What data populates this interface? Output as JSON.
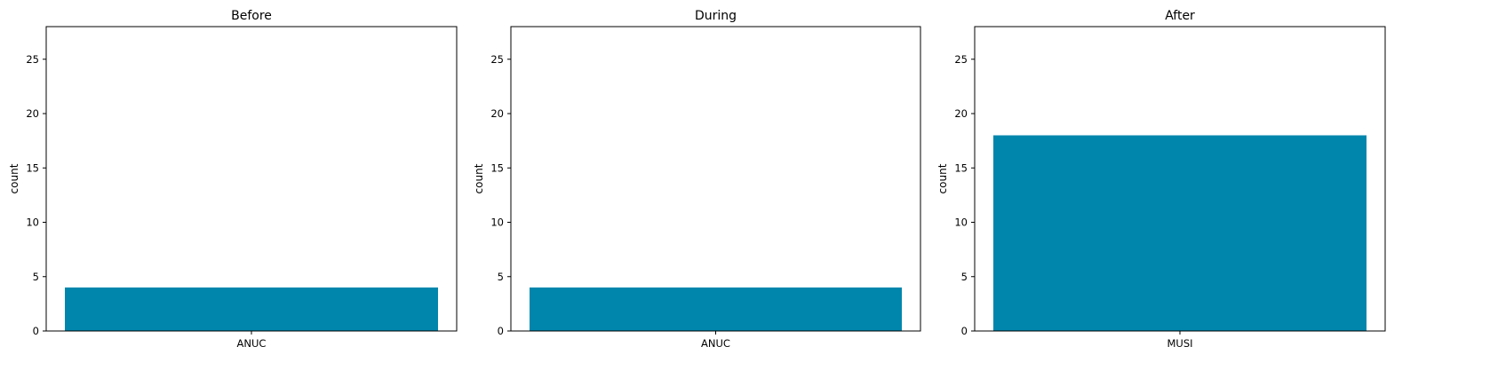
{
  "chart_data": [
    {
      "type": "bar",
      "title": "Before",
      "xlabel": "",
      "ylabel": "count",
      "categories": [
        "ANUC"
      ],
      "values": [
        4
      ],
      "ylim": [
        0,
        28
      ],
      "yticks": [
        0,
        5,
        10,
        15,
        20,
        25
      ],
      "bar_color": "#0086ad",
      "grid": false,
      "legend": "none"
    },
    {
      "type": "bar",
      "title": "During",
      "xlabel": "",
      "ylabel": "count",
      "categories": [
        "ANUC"
      ],
      "values": [
        4
      ],
      "ylim": [
        0,
        28
      ],
      "yticks": [
        0,
        5,
        10,
        15,
        20,
        25
      ],
      "bar_color": "#0086ad",
      "grid": false,
      "legend": "none"
    },
    {
      "type": "bar",
      "title": "After",
      "xlabel": "",
      "ylabel": "count",
      "categories": [
        "MUSI"
      ],
      "values": [
        18
      ],
      "ylim": [
        0,
        28
      ],
      "yticks": [
        0,
        5,
        10,
        15,
        20,
        25
      ],
      "bar_color": "#0086ad",
      "grid": false,
      "legend": "none"
    }
  ]
}
